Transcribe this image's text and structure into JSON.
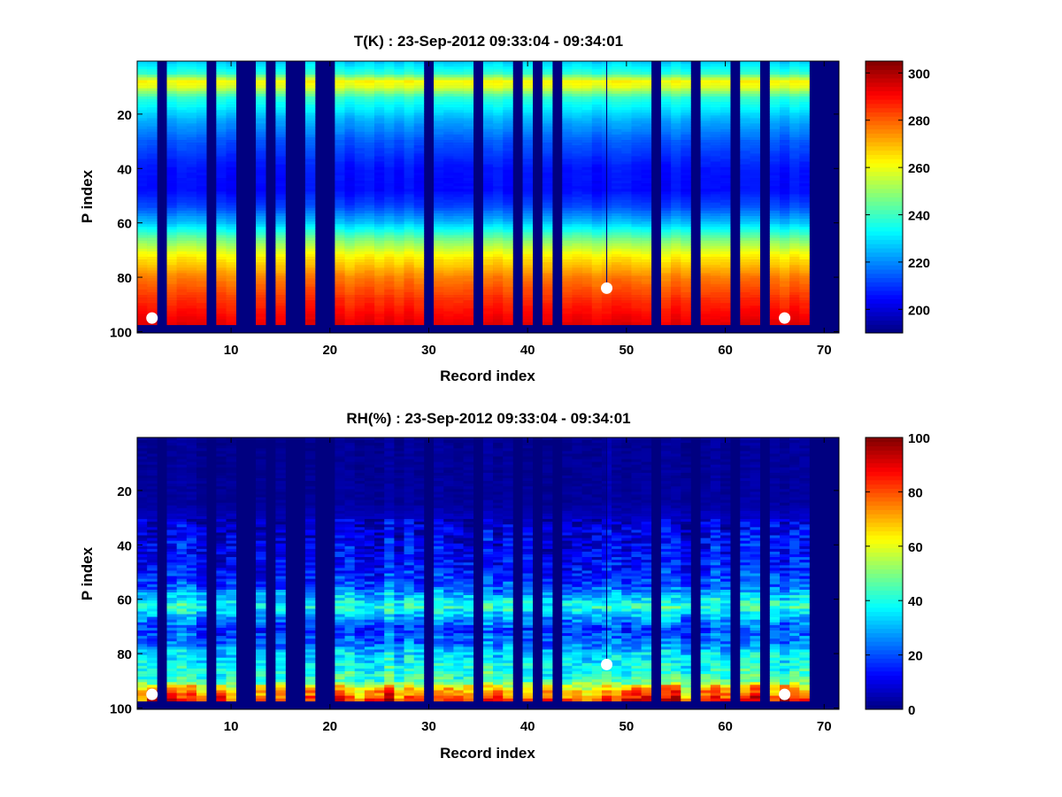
{
  "chart_data": [
    {
      "type": "heatmap",
      "title": "T(K) : 23-Sep-2012 09:33:04 - 09:34:01",
      "xlabel": "Record index",
      "ylabel": "P index",
      "xlim": [
        0.5,
        71.5
      ],
      "ylim": [
        0.5,
        100.5
      ],
      "xticks": [
        10,
        20,
        30,
        40,
        50,
        60,
        70
      ],
      "yticks": [
        20,
        40,
        60,
        80,
        100
      ],
      "variable": "temperature",
      "colorbar": {
        "min": 190,
        "max": 305,
        "ticks": [
          200,
          220,
          240,
          260,
          280,
          300
        ]
      },
      "empty_records": [
        3,
        8,
        11,
        12,
        14,
        16,
        17,
        19,
        20,
        30,
        35,
        39,
        41,
        43,
        53,
        57,
        61,
        64,
        69,
        70,
        71
      ],
      "markers": [
        {
          "record": 2,
          "p": 95
        },
        {
          "record": 48,
          "p": 84
        },
        {
          "record": 66,
          "p": 95
        }
      ],
      "profile_levels": [
        {
          "p": 1,
          "value": 228
        },
        {
          "p": 5,
          "value": 238
        },
        {
          "p": 8,
          "value": 262
        },
        {
          "p": 10,
          "value": 258
        },
        {
          "p": 14,
          "value": 238
        },
        {
          "p": 22,
          "value": 224
        },
        {
          "p": 30,
          "value": 214
        },
        {
          "p": 40,
          "value": 206
        },
        {
          "p": 48,
          "value": 205
        },
        {
          "p": 54,
          "value": 212
        },
        {
          "p": 60,
          "value": 226
        },
        {
          "p": 66,
          "value": 246
        },
        {
          "p": 72,
          "value": 262
        },
        {
          "p": 80,
          "value": 276
        },
        {
          "p": 88,
          "value": 285
        },
        {
          "p": 97,
          "value": 293
        }
      ]
    },
    {
      "type": "heatmap",
      "title": "RH(%) : 23-Sep-2012 09:33:04 - 09:34:01",
      "xlabel": "Record index",
      "ylabel": "P index",
      "xlim": [
        0.5,
        71.5
      ],
      "ylim": [
        0.5,
        100.5
      ],
      "xticks": [
        10,
        20,
        30,
        40,
        50,
        60,
        70
      ],
      "yticks": [
        20,
        40,
        60,
        80,
        100
      ],
      "variable": "relative_humidity",
      "colorbar": {
        "min": 0,
        "max": 100,
        "ticks": [
          0,
          20,
          40,
          60,
          80,
          100
        ]
      },
      "empty_records": [
        3,
        8,
        11,
        12,
        14,
        16,
        17,
        19,
        20,
        30,
        35,
        39,
        41,
        43,
        53,
        57,
        61,
        64,
        69,
        70,
        71
      ],
      "markers": [
        {
          "record": 2,
          "p": 95
        },
        {
          "record": 48,
          "p": 84
        },
        {
          "record": 66,
          "p": 95
        }
      ],
      "profile_levels": [
        {
          "p": 1,
          "value": 2
        },
        {
          "p": 25,
          "value": 3
        },
        {
          "p": 35,
          "value": 10
        },
        {
          "p": 48,
          "value": 14
        },
        {
          "p": 55,
          "value": 20
        },
        {
          "p": 59,
          "value": 32
        },
        {
          "p": 63,
          "value": 42
        },
        {
          "p": 67,
          "value": 28
        },
        {
          "p": 71,
          "value": 18
        },
        {
          "p": 76,
          "value": 24
        },
        {
          "p": 80,
          "value": 34
        },
        {
          "p": 86,
          "value": 40
        },
        {
          "p": 90,
          "value": 45
        },
        {
          "p": 93,
          "value": 65
        },
        {
          "p": 97,
          "value": 80
        }
      ]
    }
  ]
}
